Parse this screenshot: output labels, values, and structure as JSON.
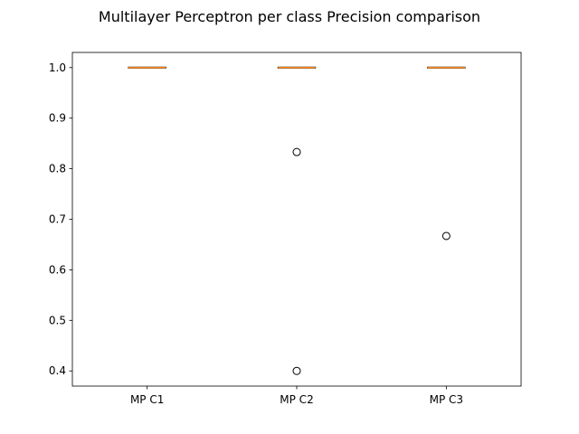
{
  "chart_data": {
    "type": "box",
    "title": "Multilayer Perceptron per class Precision comparison",
    "xlabel": "",
    "ylabel": "",
    "categories": [
      "MP C1",
      "MP C2",
      "MP C3"
    ],
    "boxes": [
      {
        "name": "MP C1",
        "q1": 1.0,
        "median": 1.0,
        "q3": 1.0,
        "whisker_low": 1.0,
        "whisker_high": 1.0,
        "outliers": []
      },
      {
        "name": "MP C2",
        "q1": 1.0,
        "median": 1.0,
        "q3": 1.0,
        "whisker_low": 1.0,
        "whisker_high": 1.0,
        "outliers": [
          0.833,
          0.4
        ]
      },
      {
        "name": "MP C3",
        "q1": 1.0,
        "median": 1.0,
        "q3": 1.0,
        "whisker_low": 1.0,
        "whisker_high": 1.0,
        "outliers": [
          0.667
        ]
      }
    ],
    "yticks": [
      "0.4",
      "0.5",
      "0.6",
      "0.7",
      "0.8",
      "0.9",
      "1.0"
    ],
    "ylim": [
      0.37,
      1.03
    ],
    "grid": false,
    "colors": {
      "median": "#ff7f0e",
      "box": "#000000",
      "outlier": "#000000"
    }
  }
}
